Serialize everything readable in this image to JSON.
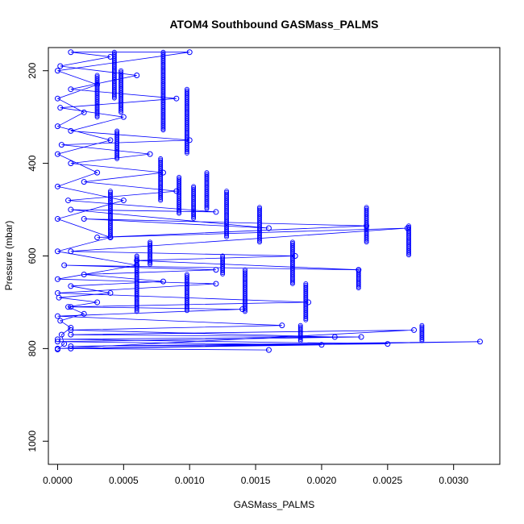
{
  "chart_data": {
    "type": "scatter",
    "title": "ATOM4 Southbound GASMass_PALMS",
    "xlabel": "GASMass_PALMS",
    "ylabel": "Pressure (mbar)",
    "xlim": [
      -7e-05,
      0.00335
    ],
    "ylim": [
      1050,
      150
    ],
    "y_reversed": true,
    "grid": false,
    "legend": "none",
    "x_ticks": [
      0.0,
      0.0005,
      0.001,
      0.0015,
      0.002,
      0.0025,
      0.003
    ],
    "x_tick_labels": [
      "0.0000",
      "0.0005",
      "0.0010",
      "0.0015",
      "0.0020",
      "0.0025",
      "0.0030"
    ],
    "y_ticks": [
      200,
      400,
      600,
      800,
      1000
    ],
    "y_tick_labels": [
      "200",
      "400",
      "600",
      "800",
      "1000"
    ],
    "series": [
      {
        "color": "#0000ff",
        "marker": "open-circle",
        "connected": true,
        "points": [
          [
            0.0,
            802
          ],
          [
            5e-05,
            790
          ],
          [
            3e-05,
            770
          ],
          [
            0.0001,
            755
          ],
          [
            2e-05,
            740
          ],
          [
            0.0002,
            725
          ],
          [
            8e-05,
            710
          ],
          [
            0.0003,
            700
          ],
          [
            1e-05,
            690
          ],
          [
            0.0004,
            680
          ],
          [
            0.0001,
            665
          ],
          [
            0.0008,
            655
          ],
          [
            0.0002,
            640
          ],
          [
            0.0012,
            630
          ],
          [
            5e-05,
            620
          ],
          [
            0.00228,
            630
          ],
          [
            0.0006,
            610
          ],
          [
            0.0018,
            600
          ],
          [
            0.0001,
            590
          ],
          [
            0.00265,
            540
          ],
          [
            0.0003,
            560
          ],
          [
            0.00234,
            535
          ],
          [
            0.0002,
            520
          ],
          [
            0.0016,
            540
          ],
          [
            0.0001,
            500
          ],
          [
            0.0012,
            505
          ],
          [
            8e-05,
            480
          ],
          [
            0.0009,
            460
          ],
          [
            0.0002,
            440
          ],
          [
            0.0008,
            420
          ],
          [
            0.0001,
            400
          ],
          [
            0.0007,
            380
          ],
          [
            3e-05,
            360
          ],
          [
            0.001,
            350
          ],
          [
            0.0001,
            330
          ],
          [
            0.0005,
            300
          ],
          [
            2e-05,
            280
          ],
          [
            0.0009,
            260
          ],
          [
            0.0001,
            240
          ],
          [
            0.0006,
            210
          ],
          [
            2e-05,
            190
          ],
          [
            0.0004,
            170
          ],
          [
            0.0001,
            160
          ],
          [
            0.001,
            160
          ],
          [
            0.0,
            200
          ],
          [
            0.0003,
            230
          ],
          [
            0.0,
            260
          ],
          [
            0.0002,
            290
          ],
          [
            0.0,
            320
          ],
          [
            0.0004,
            350
          ],
          [
            0.0,
            380
          ],
          [
            0.0003,
            420
          ],
          [
            0.0,
            450
          ],
          [
            0.0005,
            480
          ],
          [
            0.0,
            520
          ],
          [
            0.0004,
            560
          ],
          [
            0.0,
            590
          ],
          [
            0.0006,
            620
          ],
          [
            0.0,
            650
          ],
          [
            0.0012,
            660
          ],
          [
            0.0,
            680
          ],
          [
            0.0019,
            700
          ],
          [
            0.0001,
            710
          ],
          [
            0.0014,
            715
          ],
          [
            0.0,
            730
          ],
          [
            0.0017,
            750
          ],
          [
            0.0001,
            760
          ],
          [
            0.0021,
            775
          ],
          [
            0.0,
            780
          ],
          [
            0.0025,
            790
          ],
          [
            0.0001,
            795
          ],
          [
            0.0032,
            785
          ],
          [
            0.0,
            800
          ],
          [
            0.0027,
            760
          ],
          [
            0.0001,
            770
          ],
          [
            0.0023,
            775
          ],
          [
            0.0,
            785
          ],
          [
            0.002,
            792
          ],
          [
            0.0001,
            800
          ],
          [
            0.0016,
            803
          ]
        ],
        "vertical_profiles": [
          {
            "x": 0.0003,
            "p_from": 210,
            "p_to": 300
          },
          {
            "x": 0.00043,
            "p_from": 160,
            "p_to": 260
          },
          {
            "x": 0.00048,
            "p_from": 200,
            "p_to": 290
          },
          {
            "x": 0.00045,
            "p_from": 330,
            "p_to": 390
          },
          {
            "x": 0.0008,
            "p_from": 160,
            "p_to": 330
          },
          {
            "x": 0.00098,
            "p_from": 240,
            "p_to": 380
          },
          {
            "x": 0.00078,
            "p_from": 390,
            "p_to": 480
          },
          {
            "x": 0.00092,
            "p_from": 430,
            "p_to": 510
          },
          {
            "x": 0.00103,
            "p_from": 450,
            "p_to": 520
          },
          {
            "x": 0.00113,
            "p_from": 420,
            "p_to": 500
          },
          {
            "x": 0.00128,
            "p_from": 460,
            "p_to": 560
          },
          {
            "x": 0.00153,
            "p_from": 495,
            "p_to": 570
          },
          {
            "x": 0.00178,
            "p_from": 570,
            "p_to": 660
          },
          {
            "x": 0.00234,
            "p_from": 495,
            "p_to": 570
          },
          {
            "x": 0.00266,
            "p_from": 535,
            "p_to": 600
          },
          {
            "x": 0.00228,
            "p_from": 630,
            "p_to": 670
          },
          {
            "x": 0.00188,
            "p_from": 660,
            "p_to": 740
          },
          {
            "x": 0.00142,
            "p_from": 630,
            "p_to": 720
          },
          {
            "x": 0.00125,
            "p_from": 600,
            "p_to": 640
          },
          {
            "x": 0.0006,
            "p_from": 600,
            "p_to": 720
          },
          {
            "x": 0.0004,
            "p_from": 460,
            "p_to": 560
          },
          {
            "x": 0.0007,
            "p_from": 570,
            "p_to": 620
          },
          {
            "x": 0.00098,
            "p_from": 640,
            "p_to": 720
          },
          {
            "x": 0.00276,
            "p_from": 750,
            "p_to": 785
          },
          {
            "x": 0.00184,
            "p_from": 750,
            "p_to": 785
          }
        ]
      }
    ]
  }
}
